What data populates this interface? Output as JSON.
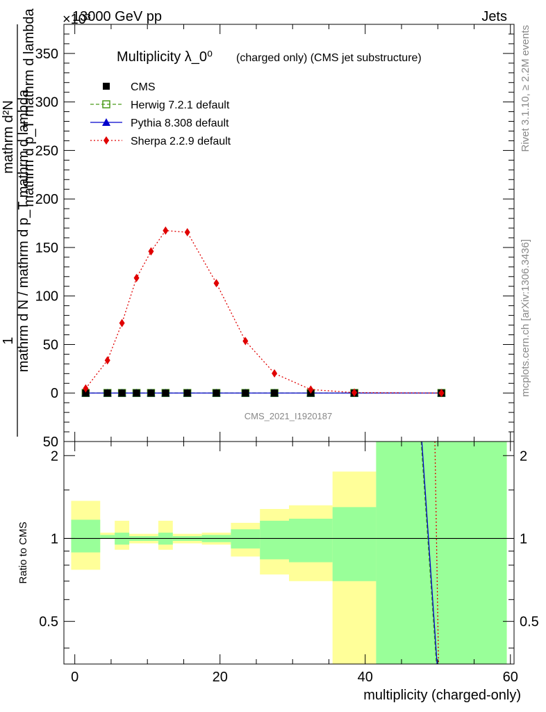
{
  "header": {
    "energy_label": "13000 GeV pp",
    "category_label": "Jets",
    "exponent_marker": "×10³"
  },
  "side_labels": {
    "rivet": "Rivet 3.1.10, ≥ 2.2M events",
    "mcplots": "mcplots.cern.ch [arXiv:1306.3436]"
  },
  "watermark": "CMS_2021_I1920187",
  "chart_data": [
    {
      "type": "line",
      "title": "Multiplicity λ_0⁰",
      "subtitle": "(charged only) (CMS jet substructure)",
      "ylabel_numerator": "1",
      "ylabel_denominator": "mathrm d N / mathrm d p_T mathrm d lambda",
      "ylabel_numerator2": "mathrm d²N",
      "ylabel_denominator2": "mathrm d p_T mathrm d lambda",
      "ylim": [
        -50,
        380
      ],
      "yticks": [
        -50,
        0,
        50,
        100,
        150,
        200,
        250,
        300,
        350
      ],
      "ytick_labels": [
        "50",
        "0",
        "50",
        "100",
        "150",
        "200",
        "250",
        "300",
        "350"
      ],
      "xlim": [
        -1.5,
        60.5
      ],
      "legend_position": "top-left",
      "series": [
        {
          "name": "CMS",
          "color": "#000000",
          "marker": "filled-square",
          "x": [
            1.5,
            4.5,
            6.5,
            8.5,
            10.5,
            12.5,
            15.5,
            19.5,
            23.5,
            27.5,
            32.5,
            38.5,
            50.5
          ],
          "y": [
            0,
            0,
            0,
            0,
            0,
            0,
            0,
            0,
            0,
            0,
            0,
            0,
            0
          ]
        },
        {
          "name": "Herwig 7.2.1 default",
          "color": "#4a9a1a",
          "marker": "open-square",
          "line": "dashed",
          "x": [
            1.5,
            4.5,
            6.5,
            8.5,
            10.5,
            12.5,
            15.5,
            19.5,
            23.5,
            27.5,
            32.5,
            38.5,
            50.5
          ],
          "y": [
            0,
            0,
            0,
            0,
            0,
            0,
            0,
            0,
            0,
            0,
            0,
            0,
            0
          ]
        },
        {
          "name": "Pythia 8.308 default",
          "color": "#0000cc",
          "marker": "filled-triangle",
          "line": "solid",
          "x": [
            1.5,
            4.5,
            6.5,
            8.5,
            10.5,
            12.5,
            15.5,
            19.5,
            23.5,
            27.5,
            32.5,
            38.5,
            50.5
          ],
          "y": [
            0,
            0,
            0,
            0,
            0,
            0,
            0,
            0,
            0,
            0,
            0,
            0,
            0
          ]
        },
        {
          "name": "Sherpa 2.2.9 default",
          "color": "#e00000",
          "marker": "filled-diamond",
          "line": "dotted",
          "x": [
            1.5,
            4.5,
            6.5,
            8.5,
            10.5,
            12.5,
            15.5,
            19.5,
            23.5,
            27.5,
            32.5,
            38.5,
            50.5
          ],
          "y": [
            4.7,
            33.7,
            72.1,
            118.6,
            146.0,
            167.4,
            165.7,
            113.2,
            53.6,
            20.2,
            3.6,
            0.4,
            0.0
          ]
        }
      ]
    },
    {
      "type": "line",
      "ylabel": "Ratio to CMS",
      "xlabel": "multiplicity (charged-only)",
      "xlim": [
        -1.5,
        60.5
      ],
      "ylim": [
        0.35,
        2.25
      ],
      "xticks": [
        0,
        20,
        40,
        60
      ],
      "xtick_labels": [
        "0",
        "20",
        "40",
        "60"
      ],
      "yticks": [
        0.5,
        1,
        2
      ],
      "ytick_labels": [
        "0.5",
        "1",
        "2"
      ],
      "reference_line": 1,
      "bands": [
        {
          "x0": -0.5,
          "x1": 3.5,
          "inner": [
            0.89,
            1.17
          ],
          "outer": [
            0.77,
            1.37
          ]
        },
        {
          "x0": 3.5,
          "x1": 5.5,
          "inner": [
            1.0,
            1.03
          ],
          "outer": [
            1.0,
            1.05
          ]
        },
        {
          "x0": 5.5,
          "x1": 7.5,
          "inner": [
            0.95,
            1.05
          ],
          "outer": [
            0.91,
            1.16
          ]
        },
        {
          "x0": 7.5,
          "x1": 9.5,
          "inner": [
            0.98,
            1.02
          ],
          "outer": [
            0.96,
            1.04
          ]
        },
        {
          "x0": 9.5,
          "x1": 11.5,
          "inner": [
            0.98,
            1.02
          ],
          "outer": [
            0.96,
            1.04
          ]
        },
        {
          "x0": 11.5,
          "x1": 13.5,
          "inner": [
            0.95,
            1.05
          ],
          "outer": [
            0.91,
            1.16
          ]
        },
        {
          "x0": 13.5,
          "x1": 17.5,
          "inner": [
            0.98,
            1.02
          ],
          "outer": [
            0.96,
            1.04
          ]
        },
        {
          "x0": 17.5,
          "x1": 21.5,
          "inner": [
            0.97,
            1.03
          ],
          "outer": [
            0.95,
            1.05
          ]
        },
        {
          "x0": 21.5,
          "x1": 25.5,
          "inner": [
            0.92,
            1.08
          ],
          "outer": [
            0.86,
            1.14
          ]
        },
        {
          "x0": 25.5,
          "x1": 29.5,
          "inner": [
            0.84,
            1.16
          ],
          "outer": [
            0.74,
            1.28
          ]
        },
        {
          "x0": 29.5,
          "x1": 35.5,
          "inner": [
            0.82,
            1.18
          ],
          "outer": [
            0.7,
            1.32
          ]
        },
        {
          "x0": 35.5,
          "x1": 41.5,
          "inner": [
            0.7,
            1.3
          ],
          "outer": [
            0.35,
            1.75
          ]
        },
        {
          "x0": 41.5,
          "x1": 59.5,
          "inner": [
            0.35,
            2.25
          ],
          "outer": [
            0.35,
            2.25
          ]
        }
      ],
      "ratio_lines": [
        {
          "name": "Herwig 7.2.1 default",
          "color": "#4a9a1a",
          "line": "dashed",
          "x": [
            47.7,
            49.8
          ],
          "y": [
            2.25,
            0.35
          ]
        },
        {
          "name": "Pythia 8.308 default",
          "color": "#0000cc",
          "line": "solid",
          "x": [
            47.8,
            49.9
          ],
          "y": [
            2.25,
            0.35
          ]
        },
        {
          "name": "Sherpa 2.2.9 default",
          "color": "#e00000",
          "line": "dotted",
          "x": [
            49.6,
            50.1
          ],
          "y": [
            2.25,
            0.35
          ]
        }
      ]
    }
  ]
}
